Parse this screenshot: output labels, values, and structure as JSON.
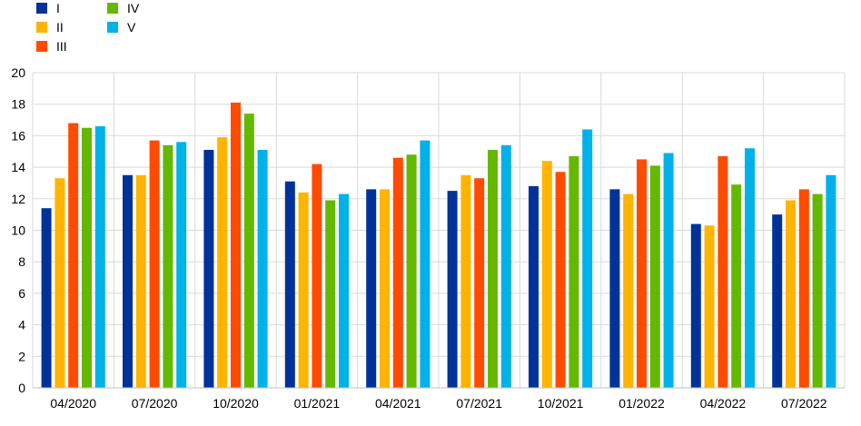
{
  "chart_data": {
    "type": "bar",
    "categories": [
      "04/2020",
      "07/2020",
      "10/2020",
      "01/2021",
      "04/2021",
      "07/2021",
      "10/2021",
      "01/2022",
      "04/2022",
      "07/2022"
    ],
    "series": [
      {
        "name": "I",
        "color": "#003299",
        "values": [
          11.4,
          13.5,
          15.1,
          13.1,
          12.6,
          12.5,
          12.8,
          12.6,
          10.4,
          11.0
        ]
      },
      {
        "name": "II",
        "color": "#FFB400",
        "values": [
          13.3,
          13.5,
          15.9,
          12.4,
          12.6,
          13.5,
          14.4,
          12.3,
          10.3,
          11.9
        ]
      },
      {
        "name": "III",
        "color": "#FF4B00",
        "values": [
          16.8,
          15.7,
          18.1,
          14.2,
          14.6,
          13.3,
          13.7,
          14.5,
          14.7,
          12.6
        ]
      },
      {
        "name": "IV",
        "color": "#65B800",
        "values": [
          16.5,
          15.4,
          17.4,
          11.9,
          14.8,
          15.1,
          14.7,
          14.1,
          12.9,
          12.3
        ]
      },
      {
        "name": "V",
        "color": "#00B1EA",
        "values": [
          16.6,
          15.6,
          15.1,
          12.3,
          15.7,
          15.4,
          16.4,
          14.9,
          15.2,
          13.5
        ]
      }
    ],
    "ylim": [
      0,
      20
    ],
    "yticks": [
      0,
      2,
      4,
      6,
      8,
      10,
      12,
      14,
      16,
      18,
      20
    ],
    "grid": true,
    "legend_position": "top-left"
  }
}
